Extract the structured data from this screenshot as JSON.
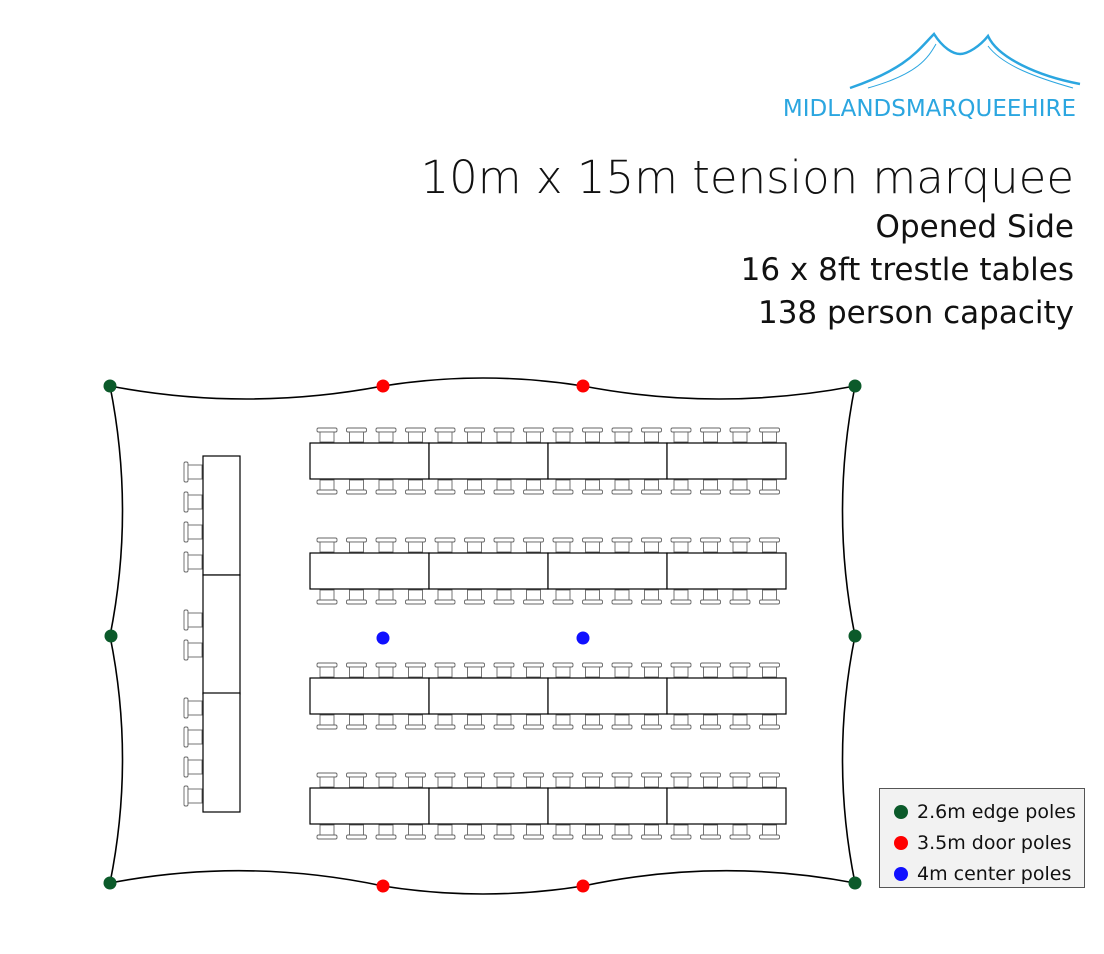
{
  "logo": {
    "text": "MIDLANDSMARQUEEHIRE",
    "color": "#2ba6e0"
  },
  "title": "10m x 15m tension marquee",
  "subtitle_lines": [
    "Opened Side",
    "16 x 8ft trestle tables",
    "138 person capacity"
  ],
  "layout": {
    "banquet_rows": 4,
    "tables_per_row": 4,
    "chairs_per_long_side": 16,
    "top_table_sections": 3,
    "top_table_chairs_per_section": [
      4,
      2,
      4
    ]
  },
  "poles": {
    "edge": {
      "color": "#0b5a2a",
      "count": 6
    },
    "door": {
      "color": "#ff0000",
      "count": 4
    },
    "center": {
      "color": "#1010ff",
      "count": 2
    }
  },
  "legend": [
    {
      "label": "2.6m edge poles",
      "color": "#0b5a2a"
    },
    {
      "label": "3.5m door poles",
      "color": "#ff0000"
    },
    {
      "label": "4m center poles",
      "color": "#1010ff"
    }
  ]
}
